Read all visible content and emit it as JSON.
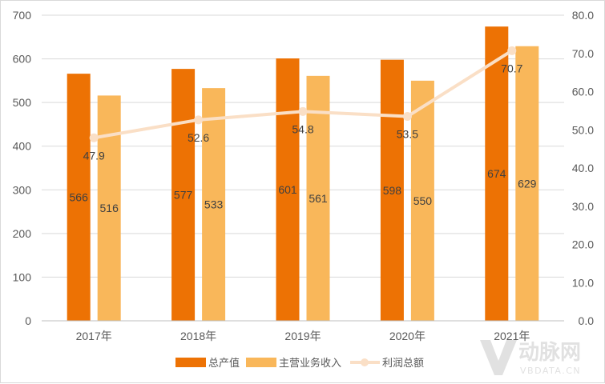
{
  "chart_data": {
    "type": "bar",
    "categories": [
      "2017年",
      "2018年",
      "2019年",
      "2020年",
      "2021年"
    ],
    "series": [
      {
        "name": "总产值",
        "type": "bar",
        "axis": "left",
        "color": "#ED7204",
        "values": [
          566,
          577,
          601,
          598,
          674
        ],
        "labels": [
          "566",
          "577",
          "601",
          "598",
          "674"
        ]
      },
      {
        "name": "主营业务收入",
        "type": "bar",
        "axis": "left",
        "color": "#F9B75A",
        "values": [
          516,
          533,
          561,
          550,
          629
        ],
        "labels": [
          "516",
          "533",
          "561",
          "550",
          "629"
        ]
      },
      {
        "name": "利润总额",
        "type": "line",
        "axis": "right",
        "color": "#FADFC6",
        "values": [
          47.9,
          52.6,
          54.8,
          53.5,
          70.7
        ],
        "labels": [
          "47.9",
          "52.6",
          "54.8",
          "53.5",
          "70.7"
        ]
      }
    ],
    "y_left": {
      "min": 0,
      "max": 700,
      "ticks": [
        "0",
        "100",
        "200",
        "300",
        "400",
        "500",
        "600",
        "700"
      ]
    },
    "y_right": {
      "min": 0,
      "max": 80,
      "ticks": [
        "0.0",
        "10.0",
        "20.0",
        "30.0",
        "40.0",
        "50.0",
        "60.0",
        "70.0",
        "80.0"
      ]
    },
    "grid": true,
    "legend": "bottom"
  },
  "watermark": {
    "icon": "vb-logo-icon",
    "text_cn": "动脉网",
    "text_en": "VBDATA.CN"
  }
}
